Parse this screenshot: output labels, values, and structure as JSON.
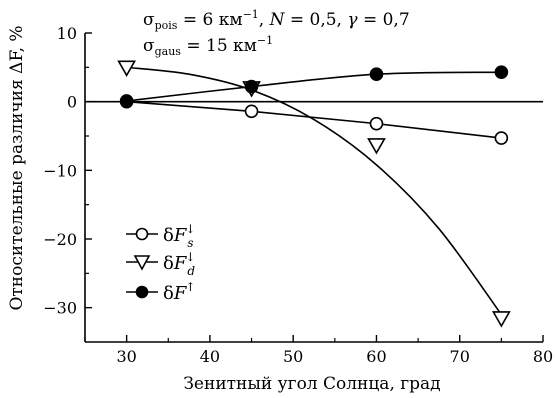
{
  "chart_data": {
    "type": "line",
    "xlabel": "Зенитный угол Солнца, град",
    "ylabel": "Относительные различия ΔF, %",
    "xlim": [
      25,
      80
    ],
    "ylim": [
      -35,
      10
    ],
    "xticks": [
      30,
      40,
      50,
      60,
      70,
      80
    ],
    "yticks": [
      10,
      0,
      -10,
      -20,
      -30
    ],
    "ytick_labels": [
      "10",
      "0",
      "−10",
      "−20",
      "−30"
    ],
    "grid": false,
    "legend_position": "lower-left",
    "annotations": [
      "σpois = 6 км−1, N = 0,5, γ = 0,7",
      "σgaus = 15 км−1"
    ],
    "series": [
      {
        "name": "δF_s↓",
        "marker": "open-circle",
        "x": [
          30,
          45,
          60,
          75
        ],
        "y": [
          0,
          -1.4,
          -3.2,
          -5.3
        ]
      },
      {
        "name": "δF_d↓",
        "marker": "open-triangle-down",
        "x": [
          30,
          45,
          60,
          75
        ],
        "y": [
          5.0,
          2.0,
          -6.3,
          -31.5
        ]
      },
      {
        "name": "δF↑",
        "marker": "filled-circle",
        "x": [
          30,
          45,
          60,
          75
        ],
        "y": [
          0.1,
          2.2,
          4.0,
          4.3
        ]
      }
    ]
  }
}
